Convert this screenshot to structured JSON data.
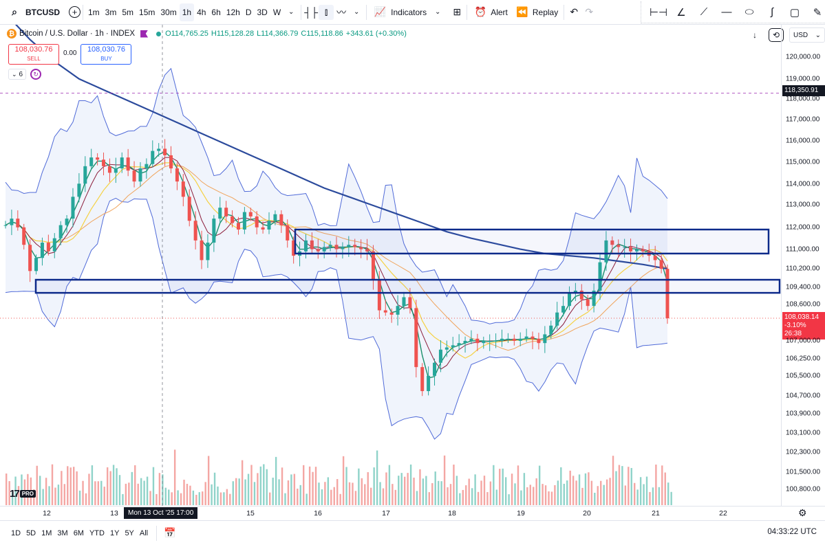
{
  "toolbar": {
    "symbol": "BTCUSD",
    "intervals": [
      "1m",
      "3m",
      "5m",
      "15m",
      "30m",
      "1h",
      "4h",
      "6h",
      "12h",
      "D",
      "3D",
      "W"
    ],
    "active_interval": "1h",
    "indicators_label": "Indicators",
    "alert_label": "Alert",
    "replay_label": "Replay"
  },
  "legend": {
    "title": "Bitcoin / U.S. Dollar · 1h · INDEX",
    "open": "O114,765.25",
    "high": "H115,128.28",
    "low": "L114,366.79",
    "close": "C115,118.86",
    "change": "+343.61 (+0.30%)"
  },
  "trade": {
    "sell_price": "108,030.76",
    "sell_label": "SELL",
    "spread": "0.00",
    "buy_price": "108,030.76",
    "buy_label": "BUY"
  },
  "indicators_count": "6",
  "scale": {
    "currency": "USD",
    "labels": [
      "120,000.00",
      "119,000.00",
      "118,000.00",
      "117,000.00",
      "116,000.00",
      "115,000.00",
      "114,000.00",
      "113,000.00",
      "112,000.00",
      "111,000.00",
      "110,200.00",
      "109,400.00",
      "108,600.00",
      "107,000.00",
      "106,250.00",
      "105,500.00",
      "104,700.00",
      "103,900.00",
      "103,100.00",
      "102,300.00",
      "101,500.00",
      "100,800.00"
    ],
    "crosshair_price": "118,350.91",
    "last_price": "108,038.14",
    "last_change": "-3.10%",
    "countdown": "26:38"
  },
  "time_axis": {
    "labels": [
      "12",
      "13",
      "15",
      "16",
      "17",
      "18",
      "19",
      "20",
      "21",
      "22"
    ],
    "crosshair_time": "Mon 13 Oct '25   17:00"
  },
  "ranges": [
    "1D",
    "5D",
    "1M",
    "3M",
    "6M",
    "YTD",
    "1Y",
    "5Y",
    "All"
  ],
  "clock": "04:33:22 UTC",
  "colors": {
    "up": "#26a69a",
    "down": "#ef5350",
    "ma200": "#2b4a9c",
    "bb": "#4f6ad8",
    "zone_border": "#0d2a8a"
  },
  "chart_data": {
    "type": "candlestick",
    "symbol": "BTCUSD",
    "close_series": [
      112300,
      112600,
      112200,
      111400,
      110200,
      110800,
      111500,
      111100,
      111700,
      112300,
      112600,
      113600,
      114200,
      115000,
      115400,
      115300,
      115000,
      114700,
      114900,
      115400,
      114800,
      114300,
      114900,
      115100,
      115700,
      115800,
      115500,
      114900,
      114300,
      113600,
      112500,
      111600,
      110700,
      111500,
      112600,
      113100,
      112700,
      112400,
      112100,
      112900,
      112700,
      112200,
      112100,
      112500,
      112800,
      112300,
      111600,
      110900,
      111100,
      111600,
      111200,
      111100,
      111300,
      111400,
      111200,
      111300,
      111400,
      111300,
      111200,
      111100,
      109800,
      108400,
      108300,
      108200,
      108600,
      109000,
      108500,
      105800,
      104700,
      105400,
      106000,
      106600,
      106700,
      106800,
      106900,
      107000,
      107100,
      106900,
      107000,
      107000,
      107000,
      107100,
      107100,
      107000,
      107100,
      107200,
      107100,
      106900,
      107300,
      107700,
      108300,
      108600,
      109200,
      109300,
      108900,
      108600,
      109300,
      110600,
      111600,
      111400,
      111300,
      111300,
      111100,
      111200,
      111100,
      110900,
      110700,
      110300,
      108038.14
    ],
    "ma200_series": [
      122000,
      120800,
      119800,
      119000,
      118500,
      118000,
      117500,
      117000,
      116500,
      116000,
      115500,
      115000,
      114500,
      114000,
      113600,
      113200,
      112800,
      112400,
      112000,
      111700,
      111450,
      111200,
      111000,
      110900,
      110800,
      110650,
      110500,
      110300
    ],
    "zones": [
      {
        "low": 111000,
        "high": 112100
      },
      {
        "low": 109200,
        "high": 109800
      }
    ],
    "ylim": [
      100500,
      120400
    ]
  }
}
